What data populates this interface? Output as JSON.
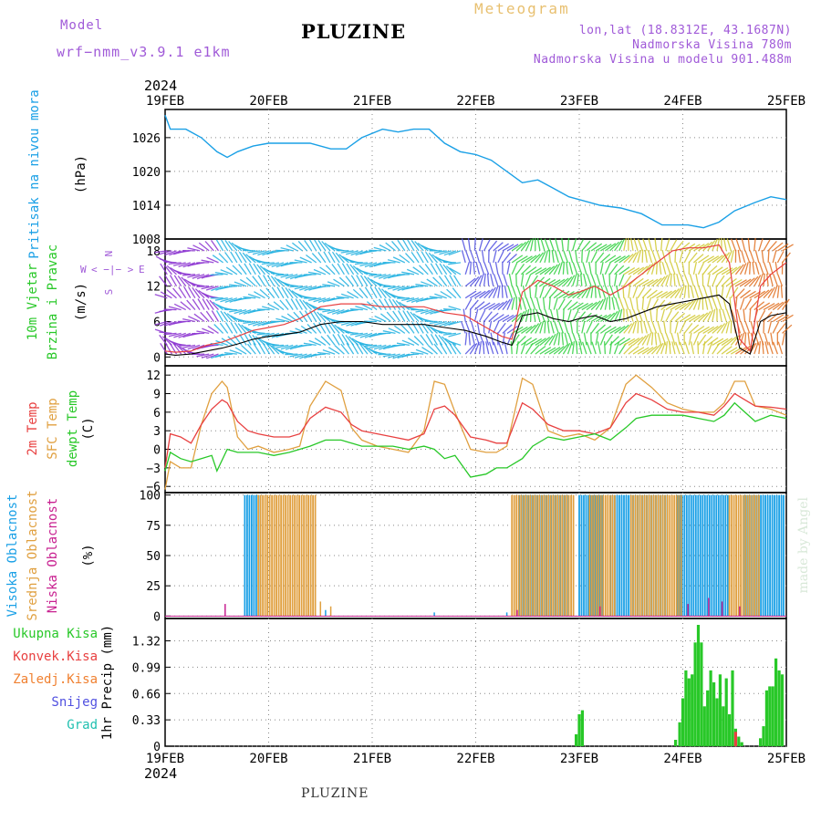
{
  "header": {
    "model_label": "Model",
    "model_name": "wrf−nmm_v3.9.1 e1km",
    "station": "PLUZINE",
    "meteogram_label": "Meteogram",
    "coords": "lon,lat (18.8312E, 43.1687N)",
    "altitude": "Nadmorska Visina 780m",
    "model_altitude": "Nadmorska Visina u modelu 901.488m",
    "year": "2024",
    "footer_station": "PLUZINE",
    "credit": "made by Angel"
  },
  "colors": {
    "pressure": "#1aa0e6",
    "temp_2m": "#e84040",
    "temp_sfc": "#e0a040",
    "dewpt": "#28c828",
    "cloud_high": "#1aa0e6",
    "cloud_mid": "#e0a040",
    "cloud_low": "#c82090",
    "precip_total": "#28c828",
    "precip_conv": "#e84040",
    "precip_frozen": "#f08030",
    "precip_snow": "#5050e0",
    "precip_grad": "#20c0b0",
    "wind_speed": "#000000",
    "wind_gust": "#e84040",
    "compass": "#a05ad8"
  },
  "chart_data": [
    {
      "type": "line",
      "id": "pressure",
      "ylabel": "Pritisak na nivou mora",
      "units": "(hPa)",
      "ylim": [
        1008,
        1031
      ],
      "yticks": [
        1008,
        1014,
        1020,
        1026
      ],
      "x_day_range": [
        19,
        25
      ],
      "x_ticks": [
        "19FEB",
        "20FEB",
        "21FEB",
        "22FEB",
        "23FEB",
        "24FEB",
        "25FEB"
      ],
      "grid": true,
      "series": [
        {
          "x": [
            19.0,
            19.05,
            19.2,
            19.35,
            19.5,
            19.6,
            19.7,
            19.85,
            20.0,
            20.2,
            20.4,
            20.6,
            20.75,
            20.9,
            21.1,
            21.25,
            21.4,
            21.55,
            21.7,
            21.85,
            22.0,
            22.15,
            22.3,
            22.45,
            22.6,
            22.75,
            22.9,
            23.0,
            23.2,
            23.4,
            23.6,
            23.8,
            23.9,
            24.05,
            24.2,
            24.35,
            24.5,
            24.7,
            24.85,
            25.0
          ],
          "values": [
            1030.0,
            1027.5,
            1027.5,
            1026.0,
            1023.5,
            1022.5,
            1023.5,
            1024.5,
            1025.0,
            1025.0,
            1025.0,
            1024.0,
            1024.0,
            1026.0,
            1027.5,
            1027.0,
            1027.5,
            1027.5,
            1025.0,
            1023.5,
            1023.0,
            1022.0,
            1020.0,
            1018.0,
            1018.5,
            1017.0,
            1015.5,
            1015.0,
            1014.0,
            1013.5,
            1012.5,
            1010.5,
            1010.5,
            1010.5,
            1010.0,
            1011.0,
            1013.0,
            1014.5,
            1015.5,
            1015.0
          ]
        }
      ]
    },
    {
      "type": "line",
      "id": "wind",
      "ylabel": "10m Vjetar",
      "ylabel2": "Brzina i Pravac",
      "units": "(m/s)",
      "ylim": [
        -1.5,
        20
      ],
      "yticks": [
        0,
        6,
        12,
        18
      ],
      "compass_labels": [
        "N",
        "W",
        "E",
        "S",
        "<",
        "−",
        "|",
        "−",
        ">"
      ],
      "grid": true,
      "series": [
        {
          "name": "speed",
          "x": [
            19.0,
            19.1,
            19.25,
            19.4,
            19.55,
            19.7,
            19.85,
            20.0,
            20.15,
            20.3,
            20.5,
            20.7,
            20.9,
            21.1,
            21.3,
            21.5,
            21.7,
            21.9,
            22.1,
            22.25,
            22.35,
            22.45,
            22.6,
            22.75,
            22.9,
            23.0,
            23.15,
            23.3,
            23.45,
            23.6,
            23.75,
            23.9,
            24.05,
            24.2,
            24.35,
            24.45,
            24.55,
            24.65,
            24.75,
            24.85,
            25.0
          ],
          "values": [
            0.5,
            0.3,
            0.5,
            1.0,
            1.5,
            2.2,
            3.0,
            3.5,
            3.8,
            4.2,
            5.5,
            6.0,
            6.0,
            5.5,
            5.5,
            5.5,
            5.0,
            4.5,
            3.5,
            2.5,
            2.0,
            7.0,
            7.5,
            6.5,
            6.0,
            6.5,
            7.0,
            6.0,
            6.5,
            7.5,
            8.5,
            9.0,
            9.5,
            10.0,
            10.5,
            9.0,
            1.5,
            0.5,
            6.0,
            7.0,
            7.5
          ]
        },
        {
          "name": "gust",
          "x": [
            19.0,
            19.1,
            19.25,
            19.4,
            19.55,
            19.7,
            19.85,
            20.0,
            20.15,
            20.3,
            20.5,
            20.7,
            20.9,
            21.1,
            21.3,
            21.5,
            21.7,
            21.9,
            22.1,
            22.25,
            22.35,
            22.45,
            22.6,
            22.75,
            22.9,
            23.0,
            23.15,
            23.3,
            23.45,
            23.6,
            23.75,
            23.9,
            24.05,
            24.2,
            24.35,
            24.45,
            24.55,
            24.65,
            24.75,
            24.85,
            25.0
          ],
          "values": [
            1.0,
            0.8,
            1.0,
            2.0,
            2.5,
            3.5,
            4.5,
            5.0,
            5.5,
            6.5,
            8.5,
            9.0,
            9.0,
            8.5,
            8.5,
            8.5,
            7.5,
            7.0,
            5.0,
            3.5,
            3.0,
            11.0,
            13.0,
            12.0,
            10.5,
            11.0,
            12.0,
            10.5,
            12.0,
            14.0,
            16.0,
            18.0,
            18.5,
            18.5,
            19.0,
            16.0,
            3.0,
            1.0,
            12.0,
            14.0,
            16.0
          ]
        }
      ]
    },
    {
      "type": "line",
      "id": "temperature",
      "ylabels": [
        "2m Temp",
        "SFC Temp",
        "dewpt Temp"
      ],
      "units": "(C)",
      "ylim": [
        -7,
        13.5
      ],
      "yticks": [
        -6,
        -3,
        0,
        3,
        6,
        9,
        12
      ],
      "grid": true,
      "series": [
        {
          "name": "2m Temp",
          "x": [
            19.0,
            19.05,
            19.15,
            19.25,
            19.35,
            19.45,
            19.55,
            19.6,
            19.7,
            19.8,
            19.9,
            20.05,
            20.2,
            20.3,
            20.4,
            20.55,
            20.7,
            20.8,
            20.9,
            21.05,
            21.2,
            21.35,
            21.5,
            21.6,
            21.7,
            21.8,
            21.95,
            22.1,
            22.2,
            22.3,
            22.45,
            22.55,
            22.7,
            22.85,
            23.0,
            23.15,
            23.3,
            23.45,
            23.55,
            23.7,
            23.85,
            24.0,
            24.15,
            24.3,
            24.4,
            24.5,
            24.6,
            24.7,
            24.85,
            25.0
          ],
          "values": [
            -3.0,
            2.5,
            2.0,
            1.0,
            4.0,
            6.5,
            8.0,
            7.5,
            4.5,
            3.0,
            2.5,
            2.0,
            2.0,
            2.5,
            5.0,
            6.8,
            6.0,
            4.0,
            3.0,
            2.5,
            2.0,
            1.5,
            2.5,
            6.5,
            7.0,
            5.5,
            2.0,
            1.5,
            1.0,
            1.0,
            7.5,
            6.5,
            4.0,
            3.0,
            3.0,
            2.5,
            3.5,
            7.5,
            9.0,
            8.0,
            6.5,
            6.0,
            6.0,
            5.5,
            7.0,
            9.0,
            8.0,
            7.0,
            6.8,
            6.5
          ]
        },
        {
          "name": "SFC Temp",
          "x": [
            19.0,
            19.05,
            19.15,
            19.25,
            19.35,
            19.45,
            19.55,
            19.6,
            19.7,
            19.8,
            19.9,
            20.05,
            20.2,
            20.3,
            20.4,
            20.55,
            20.7,
            20.8,
            20.9,
            21.05,
            21.2,
            21.35,
            21.5,
            21.6,
            21.7,
            21.8,
            21.95,
            22.1,
            22.2,
            22.3,
            22.45,
            22.55,
            22.7,
            22.85,
            23.0,
            23.15,
            23.3,
            23.45,
            23.55,
            23.7,
            23.85,
            24.0,
            24.15,
            24.3,
            24.4,
            24.5,
            24.6,
            24.7,
            24.85,
            25.0
          ],
          "values": [
            -6.5,
            -2.0,
            -3.0,
            -3.0,
            4.0,
            9.0,
            11.0,
            10.0,
            2.0,
            0.0,
            0.5,
            -0.5,
            0.0,
            0.5,
            7.0,
            11.0,
            9.5,
            3.5,
            1.5,
            0.5,
            0.0,
            -0.5,
            3.0,
            11.0,
            10.5,
            6.0,
            0.0,
            -0.5,
            -0.5,
            0.5,
            11.5,
            10.5,
            3.0,
            2.0,
            2.5,
            1.5,
            3.5,
            10.5,
            12.0,
            10.0,
            7.5,
            6.5,
            6.0,
            6.0,
            7.5,
            11.0,
            11.0,
            7.0,
            6.5,
            5.5
          ]
        },
        {
          "name": "dewpt Temp",
          "x": [
            19.0,
            19.05,
            19.15,
            19.25,
            19.35,
            19.45,
            19.5,
            19.6,
            19.7,
            19.8,
            19.9,
            20.05,
            20.2,
            20.3,
            20.4,
            20.55,
            20.7,
            20.8,
            20.9,
            21.05,
            21.2,
            21.35,
            21.5,
            21.6,
            21.7,
            21.8,
            21.95,
            22.1,
            22.2,
            22.3,
            22.45,
            22.55,
            22.7,
            22.85,
            23.0,
            23.15,
            23.3,
            23.45,
            23.55,
            23.7,
            23.85,
            24.0,
            24.15,
            24.3,
            24.4,
            24.5,
            24.6,
            24.7,
            24.85,
            25.0
          ],
          "values": [
            -3.5,
            -0.5,
            -1.5,
            -2.0,
            -1.5,
            -1.0,
            -3.5,
            0.0,
            -0.5,
            -0.5,
            -0.5,
            -1.0,
            -0.5,
            0.0,
            0.5,
            1.5,
            1.5,
            1.0,
            0.5,
            0.5,
            0.5,
            0.0,
            0.5,
            0.0,
            -1.5,
            -1.0,
            -4.5,
            -4.0,
            -3.0,
            -3.0,
            -1.5,
            0.5,
            2.0,
            1.5,
            2.0,
            2.5,
            1.5,
            3.5,
            5.0,
            5.5,
            5.5,
            5.5,
            5.0,
            4.5,
            5.5,
            7.5,
            6.0,
            4.5,
            5.5,
            5.0
          ]
        }
      ]
    },
    {
      "type": "bar",
      "id": "clouds",
      "ylabels": [
        "Visoka Oblacnost",
        "Srednja Oblacnost",
        "Niska Oblacnost"
      ],
      "units": "(%)",
      "ylim": [
        -2,
        102
      ],
      "yticks": [
        0,
        25,
        50,
        75,
        100
      ],
      "grid": true,
      "series": [
        {
          "name": "Visoka Oblacnost",
          "ranges": [
            [
              19.77,
              19.92,
              100
            ],
            [
              22.42,
              22.9,
              100
            ],
            [
              23.0,
              23.22,
              100
            ],
            [
              23.3,
              23.85,
              100
            ],
            [
              23.95,
              24.45,
              100
            ],
            [
              24.6,
              24.98,
              100
            ]
          ],
          "scattered": [
            [
              20.55,
              5
            ],
            [
              21.6,
              3
            ],
            [
              22.3,
              3
            ]
          ]
        },
        {
          "name": "Srednja Oblacnost",
          "ranges": [
            [
              19.9,
              20.45,
              100
            ],
            [
              22.35,
              22.95,
              100
            ],
            [
              23.1,
              23.35,
              100
            ],
            [
              23.5,
              24.0,
              100
            ],
            [
              24.45,
              24.75,
              100
            ]
          ],
          "scattered": [
            [
              20.5,
              12
            ],
            [
              20.6,
              8
            ]
          ]
        },
        {
          "name": "Niska Oblacnost",
          "ranges": [],
          "scattered": [
            [
              19.58,
              10
            ],
            [
              22.4,
              5
            ],
            [
              23.2,
              8
            ],
            [
              24.05,
              10
            ],
            [
              24.25,
              15
            ],
            [
              24.38,
              12
            ],
            [
              24.55,
              8
            ]
          ]
        }
      ]
    },
    {
      "type": "bar",
      "id": "precip",
      "ylabels": [
        "Ukupna Kisa",
        "Konvek.Kisa",
        "Zaledj.Kisa",
        "Snijeg",
        "Grad"
      ],
      "ylabel": "1hr Precip (mm)",
      "ylim": [
        0,
        1.6
      ],
      "yticks": [
        0,
        0.33,
        0.66,
        0.99,
        1.32
      ],
      "x_ticks": [
        "19FEB",
        "20FEB",
        "21FEB",
        "22FEB",
        "23FEB",
        "24FEB",
        "25FEB"
      ],
      "grid": true,
      "series": [
        {
          "name": "Ukupna Kisa",
          "bars": [
            [
              22.97,
              0.15
            ],
            [
              23.0,
              0.4
            ],
            [
              23.03,
              0.45
            ],
            [
              23.93,
              0.08
            ],
            [
              23.97,
              0.3
            ],
            [
              24.0,
              0.6
            ],
            [
              24.03,
              0.95
            ],
            [
              24.06,
              0.85
            ],
            [
              24.09,
              0.9
            ],
            [
              24.12,
              1.3
            ],
            [
              24.15,
              1.52
            ],
            [
              24.18,
              1.3
            ],
            [
              24.21,
              0.5
            ],
            [
              24.24,
              0.7
            ],
            [
              24.27,
              0.95
            ],
            [
              24.3,
              0.8
            ],
            [
              24.33,
              0.6
            ],
            [
              24.36,
              0.9
            ],
            [
              24.39,
              0.5
            ],
            [
              24.42,
              0.85
            ],
            [
              24.45,
              0.4
            ],
            [
              24.48,
              0.95
            ],
            [
              24.51,
              0.22
            ],
            [
              24.54,
              0.12
            ],
            [
              24.57,
              0.05
            ],
            [
              24.75,
              0.1
            ],
            [
              24.78,
              0.25
            ],
            [
              24.81,
              0.7
            ],
            [
              24.84,
              0.75
            ],
            [
              24.87,
              0.75
            ],
            [
              24.9,
              1.1
            ],
            [
              24.93,
              0.95
            ],
            [
              24.96,
              0.9
            ]
          ]
        },
        {
          "name": "Konvek.Kisa",
          "bars": [
            [
              24.51,
              0.18
            ]
          ]
        }
      ]
    }
  ]
}
